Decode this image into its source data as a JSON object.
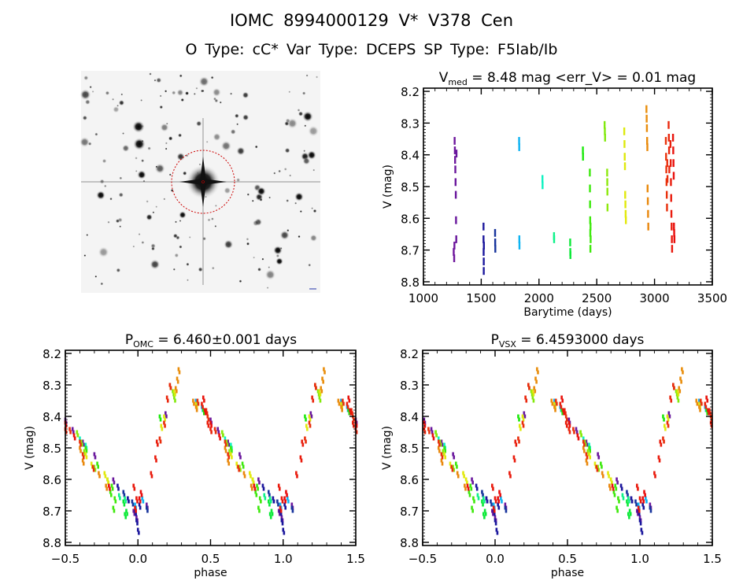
{
  "header": {
    "title": "IOMC 8994000129    V* V378 Cen",
    "subtitle": "O Type: cC*   Var Type: DCEPS   SP Type: F5Iab/Ib"
  },
  "colors": {
    "colormap": "rainbow (purple = early, red = late barytime)",
    "axes": "#000000",
    "circle": "#cc0000"
  },
  "chart_data": [
    {
      "id": "lightcurve",
      "type": "scatter",
      "title_main": "V",
      "title_sub": "med",
      "title_rest": " = 8.48 mag <err_V> = 0.01 mag",
      "xlabel": "Barytime (days)",
      "ylabel": "V (mag)",
      "xlim": [
        1000,
        3500
      ],
      "ylim": [
        8.81,
        8.19
      ],
      "xticks": [
        "1000",
        "1500",
        "2000",
        "2500",
        "3000",
        "3500"
      ],
      "yticks": [
        "8.2",
        "8.3",
        "8.4",
        "8.5",
        "8.6",
        "8.7",
        "8.8"
      ],
      "points_format": [
        "barytime",
        "V",
        "phase"
      ]
    },
    {
      "id": "phase-omc",
      "type": "scatter",
      "title_main": "P",
      "title_sub": "OMC",
      "title_rest": " = 6.460±0.001 days",
      "xlabel": "phase",
      "ylabel": "V (mag)",
      "xlim": [
        -0.5,
        1.5
      ],
      "ylim": [
        8.81,
        8.19
      ],
      "xticks": [
        "-0.5",
        "0.0",
        "0.5",
        "1.0",
        "1.5"
      ],
      "yticks": [
        "8.2",
        "8.3",
        "8.4",
        "8.5",
        "8.6",
        "8.7",
        "8.8"
      ]
    },
    {
      "id": "phase-vsx",
      "type": "scatter",
      "title_main": "P",
      "title_sub": "VSX",
      "title_rest": " = 6.4593000 days",
      "xlabel": "phase",
      "ylabel": "V (mag)",
      "xlim": [
        -0.5,
        1.5
      ],
      "ylim": [
        8.81,
        8.19
      ],
      "xticks": [
        "-0.5",
        "0.0",
        "0.5",
        "1.0",
        "1.5"
      ],
      "yticks": [
        "8.2",
        "8.3",
        "8.4",
        "8.5",
        "8.6",
        "8.7",
        "8.8"
      ]
    }
  ],
  "observations": [
    [
      1270,
      8.35,
      0.4
    ],
    [
      1272,
      8.38,
      0.45
    ],
    [
      1274,
      8.41,
      0.5
    ],
    [
      1276,
      8.44,
      0.55
    ],
    [
      1278,
      8.48,
      0.62
    ],
    [
      1280,
      8.52,
      0.7
    ],
    [
      1282,
      8.6,
      0.83
    ],
    [
      1284,
      8.66,
      0.93
    ],
    [
      1262,
      8.7,
      0.97
    ],
    [
      1266,
      8.72,
      0.99
    ],
    [
      1286,
      8.39,
      0.19
    ],
    [
      1268,
      8.68,
      0.06
    ],
    [
      1520,
      8.62,
      0.86
    ],
    [
      1520,
      8.66,
      0.93
    ],
    [
      1521,
      8.7,
      0.98
    ],
    [
      1522,
      8.73,
      0.99
    ],
    [
      1522,
      8.76,
      0.0
    ],
    [
      1523,
      8.68,
      0.01
    ],
    [
      1620,
      8.64,
      0.9
    ],
    [
      1621,
      8.67,
      0.96
    ],
    [
      1622,
      8.69,
      0.06
    ],
    [
      1828,
      8.35,
      0.4
    ],
    [
      1829,
      8.37,
      0.44
    ],
    [
      1830,
      8.66,
      0.03
    ],
    [
      1831,
      8.68,
      0.98
    ],
    [
      2030,
      8.47,
      0.6
    ],
    [
      2031,
      8.49,
      0.64
    ],
    [
      2130,
      8.65,
      0.87
    ],
    [
      2131,
      8.66,
      0.91
    ],
    [
      2270,
      8.67,
      0.9
    ],
    [
      2271,
      8.7,
      0.92
    ],
    [
      2272,
      8.71,
      0.91
    ],
    [
      2380,
      8.38,
      0.45
    ],
    [
      2381,
      8.4,
      0.15
    ],
    [
      2440,
      8.45,
      0.58
    ],
    [
      2441,
      8.5,
      0.64
    ],
    [
      2442,
      8.55,
      0.72
    ],
    [
      2443,
      8.6,
      0.79
    ],
    [
      2444,
      8.64,
      0.81
    ],
    [
      2445,
      8.69,
      0.83
    ],
    [
      2446,
      8.62,
      0.82
    ],
    [
      2447,
      8.66,
      0.84
    ],
    [
      2568,
      8.3,
      0.22
    ],
    [
      2570,
      8.32,
      0.24
    ],
    [
      2572,
      8.34,
      0.25
    ],
    [
      2590,
      8.45,
      0.58
    ],
    [
      2591,
      8.48,
      0.61
    ],
    [
      2592,
      8.51,
      0.63
    ],
    [
      2593,
      8.56,
      0.7
    ],
    [
      2738,
      8.32,
      0.25
    ],
    [
      2740,
      8.36,
      0.4
    ],
    [
      2742,
      8.4,
      0.18
    ],
    [
      2744,
      8.43,
      0.16
    ],
    [
      2746,
      8.52,
      0.64
    ],
    [
      2748,
      8.55,
      0.68
    ],
    [
      2750,
      8.58,
      0.77
    ],
    [
      2752,
      8.6,
      0.79
    ],
    [
      2930,
      8.25,
      0.28
    ],
    [
      2932,
      8.28,
      0.27
    ],
    [
      2934,
      8.31,
      0.26
    ],
    [
      2936,
      8.35,
      0.38
    ],
    [
      2938,
      8.37,
      0.4
    ],
    [
      2940,
      8.5,
      0.6
    ],
    [
      2942,
      8.54,
      0.62
    ],
    [
      2944,
      8.58,
      0.73
    ],
    [
      2946,
      8.62,
      0.78
    ],
    [
      3098,
      8.35,
      0.41
    ],
    [
      3100,
      8.4,
      0.48
    ],
    [
      3102,
      8.44,
      0.53
    ],
    [
      3104,
      8.48,
      0.6
    ],
    [
      3106,
      8.52,
      0.62
    ],
    [
      3108,
      8.56,
      0.69
    ],
    [
      3110,
      8.42,
      0.18
    ],
    [
      3112,
      8.47,
      0.15
    ],
    [
      3122,
      8.3,
      0.22
    ],
    [
      3124,
      8.34,
      0.2
    ],
    [
      3126,
      8.38,
      0.47
    ],
    [
      3128,
      8.44,
      0.5
    ],
    [
      3138,
      8.36,
      0.44
    ],
    [
      3140,
      8.42,
      0.48
    ],
    [
      3142,
      8.48,
      0.13
    ],
    [
      3144,
      8.53,
      0.12
    ],
    [
      3146,
      8.58,
      0.09
    ],
    [
      3148,
      8.62,
      0.97
    ],
    [
      3150,
      8.66,
      0.99
    ],
    [
      3152,
      8.69,
      0.98
    ],
    [
      3160,
      8.34,
      0.45
    ],
    [
      3162,
      8.38,
      0.46
    ],
    [
      3164,
      8.42,
      0.5
    ],
    [
      3166,
      8.46,
      0.56
    ],
    [
      3168,
      8.62,
      0.8
    ],
    [
      3170,
      8.64,
      0.02
    ],
    [
      3172,
      8.66,
      0.01
    ]
  ]
}
